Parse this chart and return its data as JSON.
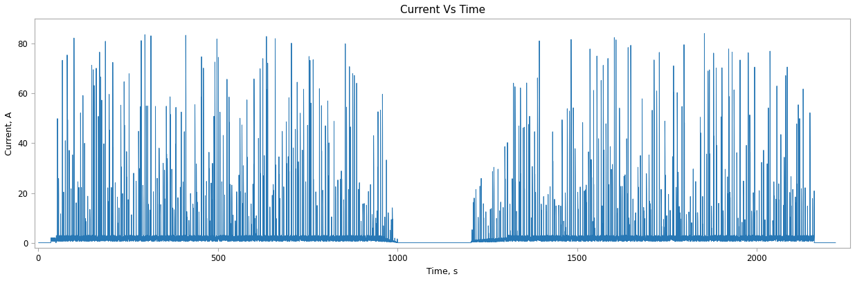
{
  "title": "Current Vs Time",
  "xlabel": "Time, s",
  "ylabel": "Current, A",
  "xlim": [
    -10,
    2260
  ],
  "ylim": [
    -2,
    90
  ],
  "xticks": [
    0,
    500,
    1000,
    1500,
    2000
  ],
  "yticks": [
    0,
    20,
    40,
    60,
    80
  ],
  "line_color": "#2878b5",
  "line_width": 0.7,
  "bg_color": "#ffffff",
  "spine_color": "#aaaaaa",
  "title_fontsize": 11,
  "label_fontsize": 9,
  "tick_fontsize": 8.5,
  "segment1_start": 50,
  "segment1_end": 1000,
  "segment2_start": 1205,
  "segment2_end": 2160,
  "seed": 42
}
